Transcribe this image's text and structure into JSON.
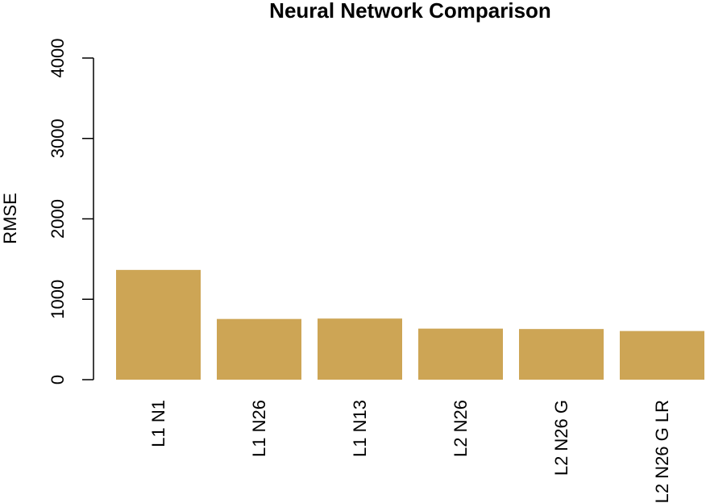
{
  "chart_data": {
    "type": "bar",
    "title": "Neural Network Comparison",
    "ylabel": "RMSE",
    "xlabel": "",
    "categories": [
      "L1 N1",
      "L1 N26",
      "L1 N13",
      "L2 N26",
      "L2 N26 G",
      "L2 N26 G LR"
    ],
    "values": [
      1365,
      755,
      760,
      635,
      630,
      605
    ],
    "ylim": [
      0,
      4000
    ],
    "yticks": [
      0,
      1000,
      2000,
      3000,
      4000
    ],
    "bar_color": "#CDA555",
    "grid": false
  }
}
